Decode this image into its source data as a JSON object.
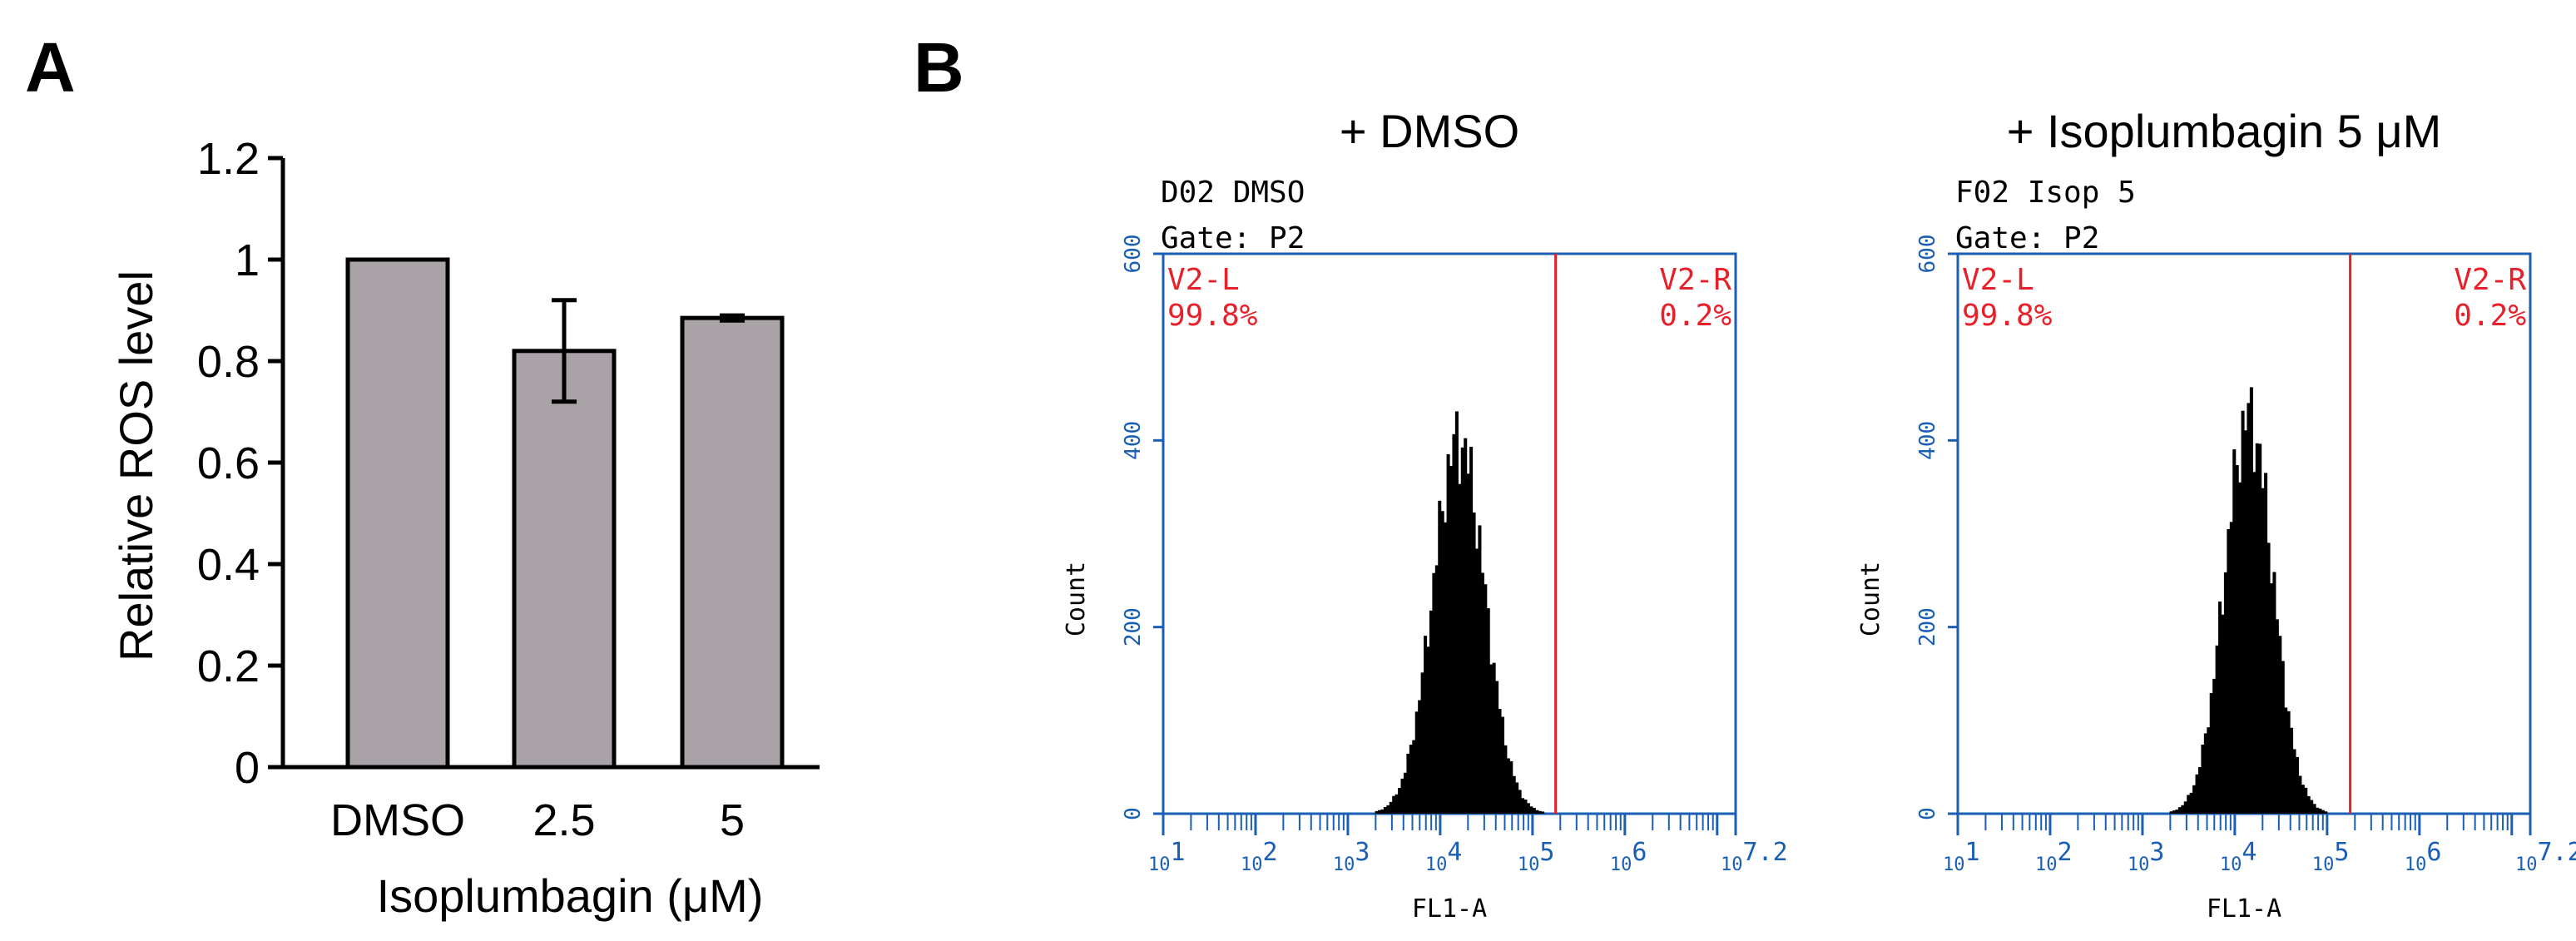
{
  "chart_data": [
    {
      "panel": "A",
      "type": "bar",
      "categories": [
        "DMSO",
        "2.5",
        "5"
      ],
      "values": [
        1.0,
        0.82,
        0.885
      ],
      "errors": [
        0.0,
        0.1,
        0.005
      ],
      "bar_color": "#a9a3a7",
      "title": "",
      "xlabel": "Isoplumbagin (μM)",
      "ylabel": "Relative ROS level",
      "ylim": [
        0,
        1.2
      ],
      "yticks": [
        "0",
        "0.2",
        "0.4",
        "0.6",
        "0.8",
        "1",
        "1.2"
      ]
    },
    {
      "panel": "B",
      "type": "histogram",
      "title": "+ DMSO",
      "sample": "D02 DMSO",
      "gate": "Gate: P2",
      "xlabel": "FL1-A",
      "ylabel": "Count",
      "xlim_log10": [
        1,
        7.2
      ],
      "ylim": [
        0,
        600
      ],
      "yticks": [
        "0",
        "200",
        "400",
        "600"
      ],
      "x_decades": [
        {
          "base": "10",
          "exp": "1"
        },
        {
          "base": "10",
          "exp": "2"
        },
        {
          "base": "10",
          "exp": "3"
        },
        {
          "base": "10",
          "exp": "4"
        },
        {
          "base": "10",
          "exp": "5"
        },
        {
          "base": "10",
          "exp": "6"
        },
        {
          "base": "10",
          "exp": "7.2"
        }
      ],
      "gate_split_log10": 5.25,
      "regions": [
        {
          "name": "V2-L",
          "percent": "99.8%"
        },
        {
          "name": "V2-R",
          "percent": "0.2%"
        }
      ],
      "peak_log10": 4.2,
      "peak_count": 400,
      "spread_log10": 0.28,
      "hist_color": "#000000",
      "frame_color": "#1a5fb4",
      "gate_color": "#e8202a"
    },
    {
      "panel": "B",
      "type": "histogram",
      "title": "+ Isoplumbagin 5 μM",
      "sample": "F02 Isop 5",
      "gate": "Gate: P2",
      "xlabel": "FL1-A",
      "ylabel": "Count",
      "xlim_log10": [
        1,
        7.2
      ],
      "ylim": [
        0,
        600
      ],
      "yticks": [
        "0",
        "200",
        "400",
        "600"
      ],
      "x_decades": [
        {
          "base": "10",
          "exp": "1"
        },
        {
          "base": "10",
          "exp": "2"
        },
        {
          "base": "10",
          "exp": "3"
        },
        {
          "base": "10",
          "exp": "4"
        },
        {
          "base": "10",
          "exp": "5"
        },
        {
          "base": "10",
          "exp": "6"
        },
        {
          "base": "10",
          "exp": "7.2"
        }
      ],
      "gate_split_log10": 5.25,
      "regions": [
        {
          "name": "V2-L",
          "percent": "99.8%"
        },
        {
          "name": "V2-R",
          "percent": "0.2%"
        }
      ],
      "peak_log10": 4.15,
      "peak_count": 425,
      "spread_log10": 0.26,
      "hist_color": "#000000",
      "frame_color": "#1a5fb4",
      "gate_color": "#e8202a"
    }
  ],
  "panel_labels": {
    "a": "A",
    "b": "B"
  }
}
